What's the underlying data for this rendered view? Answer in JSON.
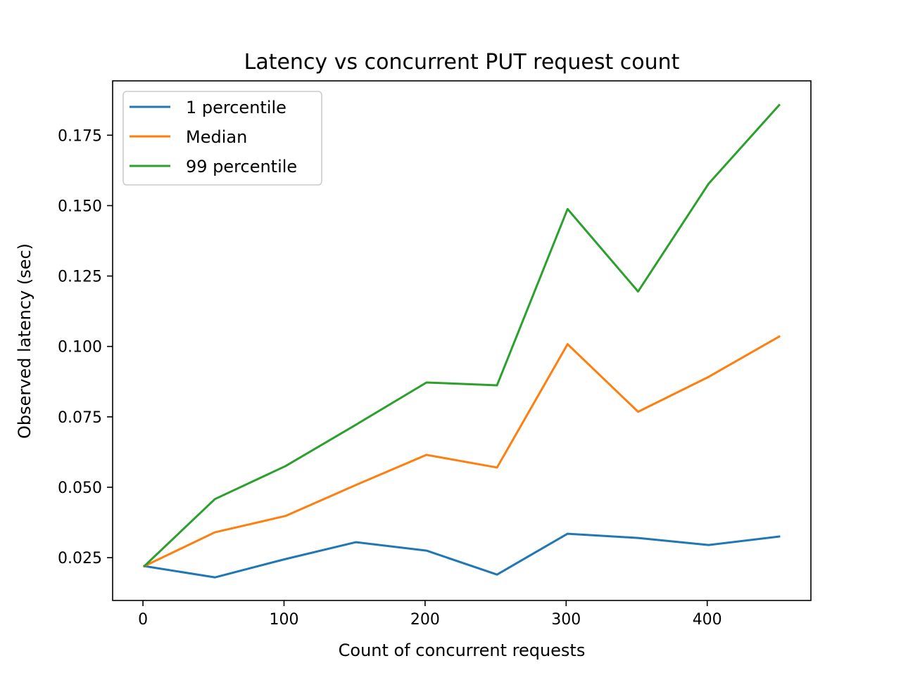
{
  "chart_data": {
    "type": "line",
    "title": "Latency vs concurrent PUT request count",
    "xlabel": "Count of concurrent requests",
    "ylabel": "Observed latency (sec)",
    "x": [
      1,
      51,
      101,
      151,
      201,
      251,
      301,
      351,
      401,
      451
    ],
    "xlim": [
      -21.5,
      473.5
    ],
    "ylim": [
      0.0098,
      0.1943
    ],
    "xticks": [
      0,
      100,
      200,
      300,
      400
    ],
    "xtick_labels": [
      "0",
      "100",
      "200",
      "300",
      "400"
    ],
    "yticks": [
      0.025,
      0.05,
      0.075,
      0.1,
      0.125,
      0.15,
      0.175
    ],
    "ytick_labels": [
      "0.025",
      "0.050",
      "0.075",
      "0.100",
      "0.125",
      "0.150",
      "0.175"
    ],
    "grid": false,
    "legend_position": "top-left",
    "series": [
      {
        "name": "1 percentile",
        "color": "#1f77b4",
        "values": [
          0.022,
          0.018,
          0.0245,
          0.0305,
          0.0275,
          0.019,
          0.0335,
          0.032,
          0.0295,
          0.0325
        ]
      },
      {
        "name": "Median",
        "color": "#ff7f0e",
        "values": [
          0.022,
          0.034,
          0.0398,
          0.0508,
          0.0615,
          0.057,
          0.1008,
          0.0768,
          0.0892,
          0.1035
        ]
      },
      {
        "name": "99 percentile",
        "color": "#2ca02c",
        "values": [
          0.022,
          0.0458,
          0.0575,
          0.0722,
          0.0872,
          0.0862,
          0.1488,
          0.1195,
          0.1578,
          0.1857
        ]
      }
    ]
  }
}
